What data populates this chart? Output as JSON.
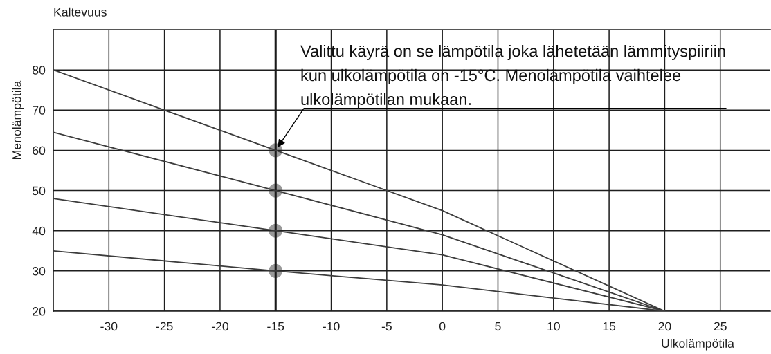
{
  "chart_data": {
    "type": "line",
    "title": "Kaltevuus",
    "xlabel": "Ulkolämpötila",
    "ylabel": "Menolämpötila",
    "xlim": [
      -35,
      29.5
    ],
    "xticks": [
      -30,
      -25,
      -20,
      -15,
      -10,
      -5,
      0,
      5,
      10,
      15,
      20,
      25
    ],
    "ylim": [
      20,
      90
    ],
    "yticks": [
      20,
      30,
      40,
      50,
      60,
      70,
      80
    ],
    "grid": true,
    "series": [
      {
        "x": [
          -35,
          -15,
          0,
          20
        ],
        "values": [
          80,
          60,
          45,
          20
        ],
        "color": "#3c3c3c"
      },
      {
        "x": [
          -35,
          -15,
          0,
          20
        ],
        "values": [
          64.5,
          50,
          39,
          20
        ],
        "color": "#3c3c3c"
      },
      {
        "x": [
          -35,
          -15,
          0,
          20
        ],
        "values": [
          48,
          40,
          34,
          20
        ],
        "color": "#3c3c3c"
      },
      {
        "x": [
          -35,
          -15,
          0,
          20
        ],
        "values": [
          35,
          30,
          26.5,
          20
        ],
        "color": "#3c3c3c"
      },
      {
        "type": "scatter",
        "marker": "circle",
        "x": [
          -15,
          -15,
          -15,
          -15
        ],
        "values": [
          60,
          50,
          40,
          30
        ],
        "color": "#999999"
      }
    ],
    "ref_lines": [
      {
        "axis": "x",
        "value": -15,
        "color": "#1a1a1a"
      }
    ],
    "annotations": [
      {
        "text": "Valittu käyrä on se lämpötila joka lähetetään lämmityspiiriin\nkun ulkolämpötila on -15°C. Menolämpötila vaihtelee\nulkolämpötilan mukaan.",
        "x": -15,
        "y": 60
      }
    ]
  }
}
